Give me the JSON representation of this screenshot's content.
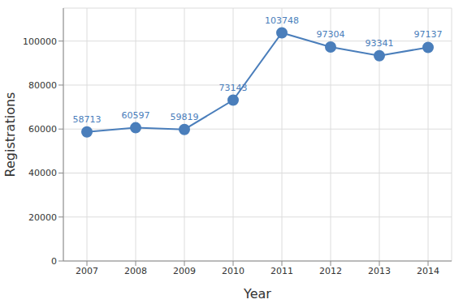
{
  "chart_data": {
    "type": "line",
    "x_label": "Year",
    "y_label": "Registrations",
    "categories": [
      "2007",
      "2008",
      "2009",
      "2010",
      "2011",
      "2012",
      "2013",
      "2014"
    ],
    "values": [
      58713,
      60597,
      59819,
      73143,
      103748,
      97304,
      93341,
      97137
    ],
    "color": "#4a7ebb",
    "marker": "circle",
    "ylim": [
      0,
      115000
    ],
    "yticks": [
      0,
      20000,
      40000,
      60000,
      80000,
      100000
    ],
    "grid": true,
    "data_labels": true
  }
}
